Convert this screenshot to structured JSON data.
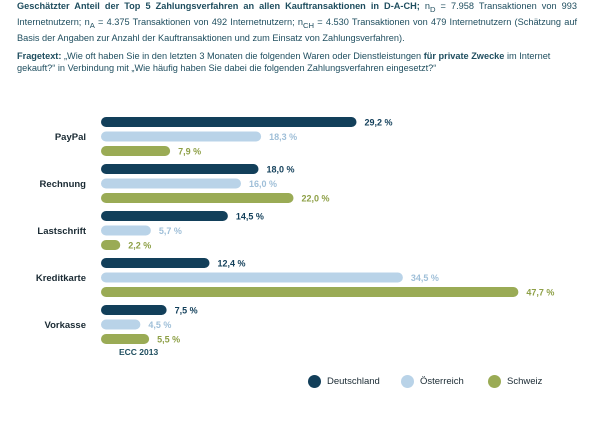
{
  "header": {
    "title": "Geschätzter Anteil der Top 5 Zahlungsverfahren an allen Kauftransaktionen in D-A-CH;",
    "n_d_sub": "D",
    "n_d": " = 7.958 Transaktionen von 993 Internetnutzern; ",
    "n_a_sub": "A",
    "n_a": " = 4.375 Transaktionen von 492 Internetnutzern; ",
    "n_ch_sub": "CH",
    "n_ch": " = 4.530 Transaktionen von 479 Internetnutzern",
    "note": "(Schätzung auf Basis der Angaben zur Anzahl der Kauftransaktionen und zum Einsatz von Zahlungsverfahren)."
  },
  "question": {
    "lead": "Fragetext:",
    "part1": " „Wie oft haben Sie in den letzten 3 Monaten die folgenden Waren oder Dienstleistungen ",
    "bold": "für private Zwecke",
    "part2": " im Internet gekauft?“ in Verbindung mit „Wie häufig haben Sie dabei die folgenden Zahlungsverfahren eingesetzt?“"
  },
  "source": "ECC 2013",
  "chart_data": {
    "type": "bar",
    "orientation": "horizontal",
    "categories": [
      "PayPal",
      "Rechnung",
      "Lastschrift",
      "Kreditkarte",
      "Vorkasse"
    ],
    "series": [
      {
        "name": "Deutschland",
        "color": "#123f5a",
        "values": [
          29.2,
          18.0,
          14.5,
          12.4,
          7.5
        ],
        "labels": [
          "29,2 %",
          "18,0 %",
          "14,5 %",
          "12,4 %",
          "7,5 %"
        ]
      },
      {
        "name": "Österreich",
        "color": "#b9d3e8",
        "values": [
          18.3,
          16.0,
          5.7,
          34.5,
          4.5
        ],
        "labels": [
          "18,3 %",
          "16,0 %",
          "5,7 %",
          "34,5 %",
          "4,5 %"
        ]
      },
      {
        "name": "Schweiz",
        "color": "#9aab55",
        "values": [
          7.9,
          22.0,
          2.2,
          47.7,
          5.5
        ],
        "labels": [
          "7,9 %",
          "22,0 %",
          "2,2 %",
          "47,7 %",
          "5,5 %"
        ]
      }
    ],
    "xlim": [
      0,
      50
    ],
    "grid": false,
    "legend_position": "bottom-right"
  }
}
